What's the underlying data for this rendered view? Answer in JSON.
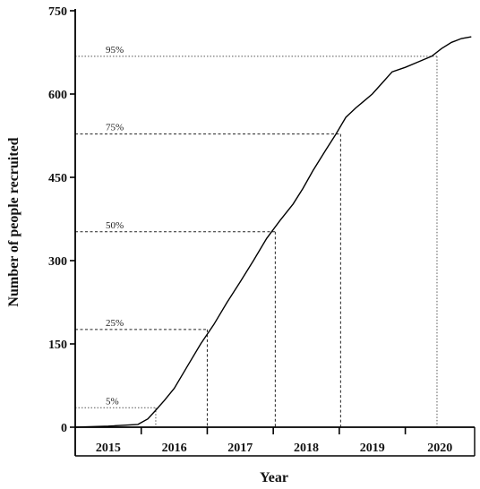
{
  "chart_data": {
    "type": "line",
    "title": "",
    "xlabel": "Year",
    "ylabel": "Number of people recruited",
    "ylim": [
      0,
      750
    ],
    "yticks": [
      0,
      150,
      300,
      450,
      600,
      750
    ],
    "xlim": [
      2015.0,
      2021.05
    ],
    "year_labels": [
      "2015",
      "2016",
      "2017",
      "2018",
      "2019",
      "2020"
    ],
    "year_boundaries": [
      2016.0,
      2017.0,
      2018.0,
      2019.0,
      2020.0
    ],
    "grid": false,
    "series": [
      {
        "x": [
          2015.0,
          2015.5,
          2015.95,
          2016.1,
          2016.2,
          2016.35,
          2016.5,
          2016.7,
          2016.9,
          2017.1,
          2017.3,
          2017.5,
          2017.7,
          2017.9,
          2018.1,
          2018.3,
          2018.45,
          2018.6,
          2018.8,
          2018.95,
          2019.1,
          2019.25,
          2019.35,
          2019.5,
          2019.65,
          2019.8,
          2020.0,
          2020.2,
          2020.4,
          2020.55,
          2020.7,
          2020.85,
          2021.0
        ],
        "y": [
          0,
          2,
          5,
          15,
          28,
          48,
          70,
          110,
          150,
          185,
          225,
          262,
          300,
          340,
          372,
          402,
          430,
          462,
          500,
          528,
          558,
          575,
          585,
          600,
          620,
          640,
          648,
          658,
          668,
          682,
          693,
          700,
          703
        ]
      }
    ],
    "annotations": [
      {
        "label": "5%",
        "value": 35,
        "x": 2016.22,
        "style": "dotted"
      },
      {
        "label": "25%",
        "value": 176,
        "x": 2017.0,
        "style": "dashed"
      },
      {
        "label": "50%",
        "value": 352,
        "x": 2018.03,
        "style": "dashed"
      },
      {
        "label": "75%",
        "value": 528,
        "x": 2019.02,
        "style": "dashed"
      },
      {
        "label": "95%",
        "value": 668,
        "x": 2020.48,
        "style": "dotted"
      }
    ]
  }
}
